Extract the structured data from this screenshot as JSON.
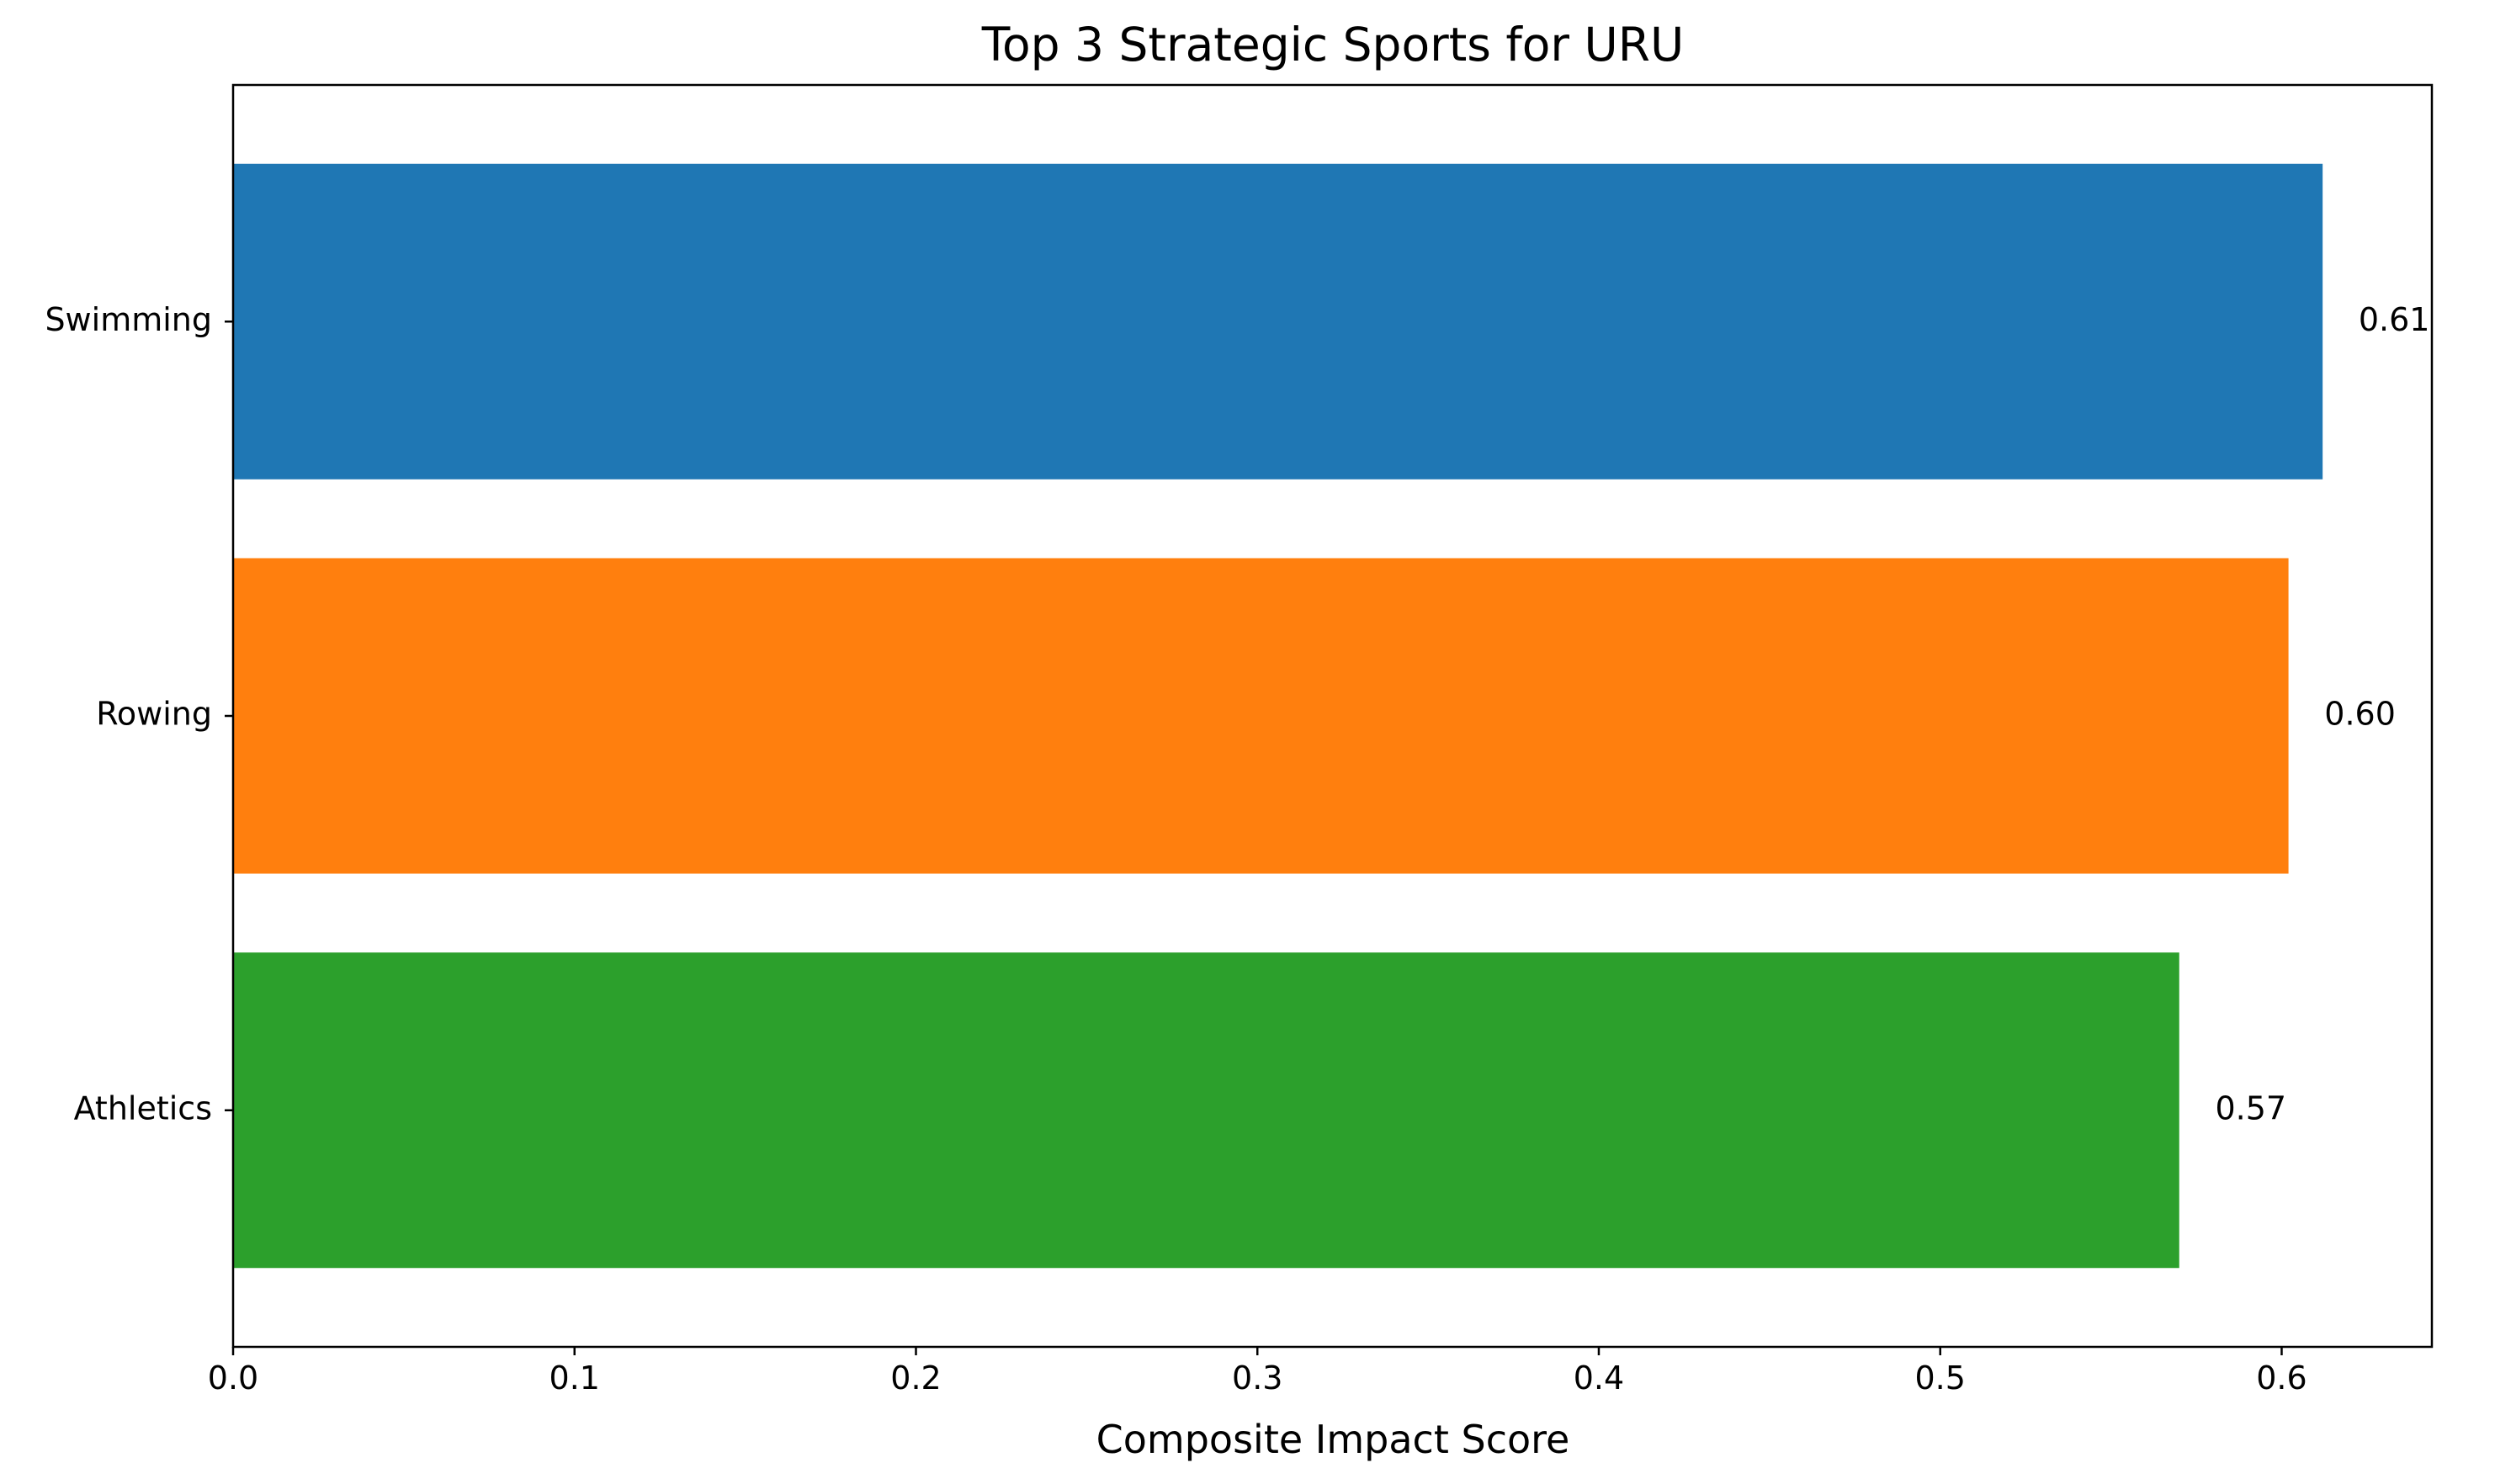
{
  "chart_data": {
    "type": "bar",
    "orientation": "horizontal",
    "title": "Top 3 Strategic Sports for URU",
    "xlabel": "Composite Impact Score",
    "ylabel": "",
    "categories": [
      "Swimming",
      "Rowing",
      "Athletics"
    ],
    "values": [
      0.612,
      0.602,
      0.57
    ],
    "value_labels": [
      "0.61",
      "0.60",
      "0.57"
    ],
    "colors": [
      "#1f77b4",
      "#ff7f0e",
      "#2ca02c"
    ],
    "xlim": [
      0,
      0.644
    ],
    "xticks": [
      0.0,
      0.1,
      0.2,
      0.3,
      0.4,
      0.5,
      0.6
    ],
    "xtick_labels": [
      "0.0",
      "0.1",
      "0.2",
      "0.3",
      "0.4",
      "0.5",
      "0.6"
    ],
    "grid": false,
    "legend": false
  }
}
